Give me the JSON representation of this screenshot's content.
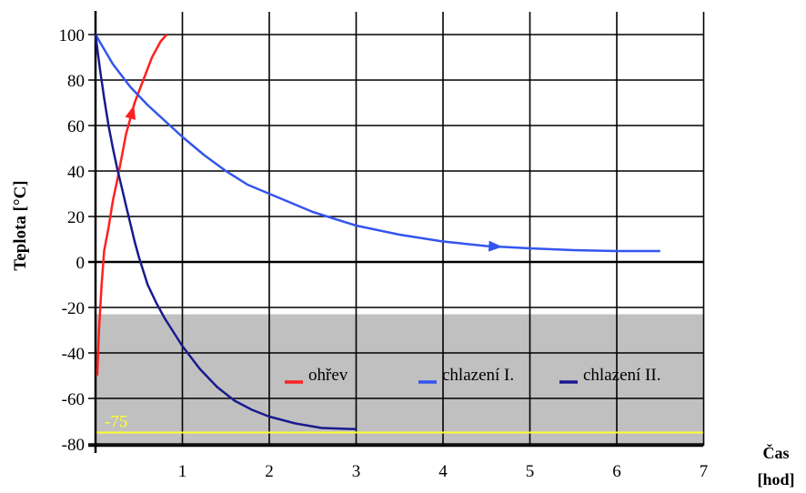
{
  "chart_data": {
    "type": "line",
    "ylabel": "Teplota [°C]",
    "xlabel": [
      "Čas",
      "[hod]"
    ],
    "xlim": [
      0,
      7
    ],
    "ylim": [
      -80,
      100
    ],
    "x_ticks": [
      1,
      2,
      3,
      4,
      5,
      6,
      7
    ],
    "y_ticks": [
      100,
      80,
      60,
      40,
      20,
      0,
      -20,
      -40,
      -60,
      -80
    ],
    "grid": true,
    "shaded_region": {
      "from": -80,
      "to": -23,
      "color": "#c0c0c0"
    },
    "reference_line": {
      "y": -75,
      "label": "-75",
      "color": "#ffff33"
    },
    "legend_placement": "inside-bottom-right",
    "series": [
      {
        "name": "ohřev",
        "color": "#ff2020",
        "arrow_at": 0.42,
        "points": [
          [
            0.02,
            -50
          ],
          [
            0.04,
            -30
          ],
          [
            0.07,
            -10
          ],
          [
            0.1,
            5
          ],
          [
            0.15,
            15
          ],
          [
            0.2,
            27
          ],
          [
            0.25,
            36
          ],
          [
            0.3,
            46
          ],
          [
            0.35,
            56
          ],
          [
            0.4,
            63
          ],
          [
            0.45,
            70
          ],
          [
            0.55,
            80
          ],
          [
            0.65,
            90
          ],
          [
            0.75,
            97
          ],
          [
            0.82,
            100
          ]
        ]
      },
      {
        "name": "chlazení I.",
        "color": "#3355ee",
        "arrow_at": 4.6,
        "points": [
          [
            0,
            100
          ],
          [
            0.2,
            87
          ],
          [
            0.4,
            77
          ],
          [
            0.6,
            69
          ],
          [
            0.8,
            62
          ],
          [
            1,
            55
          ],
          [
            1.25,
            47
          ],
          [
            1.5,
            40
          ],
          [
            1.75,
            34
          ],
          [
            2,
            30
          ],
          [
            2.5,
            22
          ],
          [
            3,
            16
          ],
          [
            3.5,
            12
          ],
          [
            4,
            9
          ],
          [
            4.5,
            7
          ],
          [
            5,
            6
          ],
          [
            5.5,
            5.2
          ],
          [
            6,
            4.8
          ],
          [
            6.5,
            4.8
          ]
        ]
      },
      {
        "name": "chlazení II.",
        "color": "#1a1a90",
        "points": [
          [
            0,
            100
          ],
          [
            0.05,
            85
          ],
          [
            0.1,
            72
          ],
          [
            0.15,
            60
          ],
          [
            0.2,
            50
          ],
          [
            0.25,
            41
          ],
          [
            0.3,
            33
          ],
          [
            0.35,
            25
          ],
          [
            0.4,
            17
          ],
          [
            0.45,
            9
          ],
          [
            0.5,
            2
          ],
          [
            0.6,
            -10
          ],
          [
            0.7,
            -18
          ],
          [
            0.8,
            -25
          ],
          [
            1,
            -37
          ],
          [
            1.2,
            -47
          ],
          [
            1.4,
            -55
          ],
          [
            1.6,
            -61
          ],
          [
            1.8,
            -65
          ],
          [
            2,
            -68
          ],
          [
            2.3,
            -71
          ],
          [
            2.6,
            -73
          ],
          [
            3,
            -73.5
          ]
        ]
      }
    ]
  }
}
